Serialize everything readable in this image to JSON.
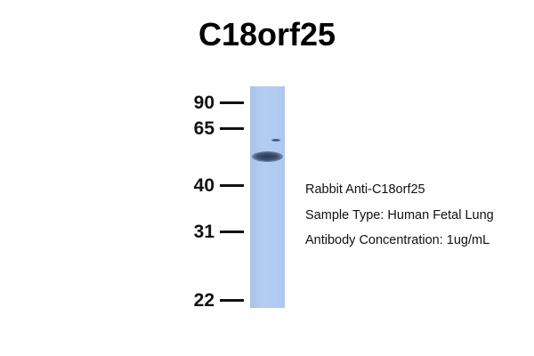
{
  "title": "C18orf25",
  "markers": [
    {
      "label": "90"
    },
    {
      "label": "65"
    },
    {
      "label": "40"
    },
    {
      "label": "31"
    },
    {
      "label": "22"
    }
  ],
  "info": {
    "antibody": "Rabbit Anti-C18orf25",
    "sample": "Sample Type: Human Fetal Lung",
    "concentration": "Antibody Concentration: 1ug/mL"
  },
  "colors": {
    "lane": "#b0c9ef",
    "band": "#2c3a55"
  }
}
